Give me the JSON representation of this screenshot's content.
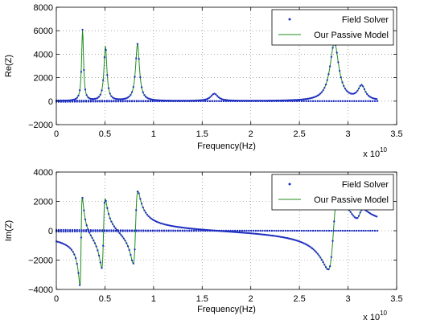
{
  "chart_data": [
    {
      "type": "line",
      "ylabel": "Re(Z)",
      "xlabel": "Frequency(Hz)",
      "xlim": [
        0,
        3.5
      ],
      "ylim": [
        -2000,
        8000
      ],
      "x_scale_label": "x 10",
      "x_scale_exponent": "10",
      "xticks": [
        0,
        0.5,
        1,
        1.5,
        2,
        2.5,
        3,
        3.5
      ],
      "xtick_labels": [
        "0",
        "0.5",
        "1",
        "1.5",
        "2",
        "2.5",
        "3",
        "3.5"
      ],
      "yticks": [
        -2000,
        0,
        2000,
        4000,
        6000,
        8000
      ],
      "ytick_labels": [
        "−2000",
        "0",
        "2000",
        "4000",
        "6000",
        "8000"
      ],
      "grid": "dotted",
      "legend_position": "top-right",
      "series": [
        {
          "name": "Field Solver",
          "style": "dots",
          "color": "#1f2fbf"
        },
        {
          "name": "Our Passive Model",
          "style": "line",
          "color": "#1e8c1e"
        }
      ],
      "resonances": [
        {
          "f": 0.27,
          "peak": 6050,
          "width": 0.012
        },
        {
          "f": 0.505,
          "peak": 4650,
          "width": 0.018
        },
        {
          "f": 0.835,
          "peak": 4850,
          "width": 0.024
        },
        {
          "f": 1.625,
          "peak": 620,
          "width": 0.045
        },
        {
          "f": 2.86,
          "peak": 4950,
          "width": 0.055
        },
        {
          "f": 3.14,
          "peak": 1200,
          "width": 0.045
        }
      ]
    },
    {
      "type": "line",
      "ylabel": "Im(Z)",
      "xlabel": "Frequency(Hz)",
      "xlim": [
        0,
        3.5
      ],
      "ylim": [
        -4000,
        4000
      ],
      "x_scale_label": "x 10",
      "x_scale_exponent": "10",
      "xticks": [
        0,
        0.5,
        1,
        1.5,
        2,
        2.5,
        3,
        3.5
      ],
      "xtick_labels": [
        "0",
        "0.5",
        "1",
        "1.5",
        "2",
        "2.5",
        "3",
        "3.5"
      ],
      "yticks": [
        -4000,
        -2000,
        0,
        2000,
        4000
      ],
      "ytick_labels": [
        "−4000",
        "−2000",
        "0",
        "2000",
        "4000"
      ],
      "grid": "dotted",
      "legend_position": "top-right",
      "series": [
        {
          "name": "Field Solver",
          "style": "dots",
          "color": "#1f2fbf"
        },
        {
          "name": "Our Passive Model",
          "style": "line",
          "color": "#1e8c1e"
        }
      ],
      "resonances": [
        {
          "f": 0.255,
          "peak": 3050,
          "width": 0.012
        },
        {
          "f": 0.485,
          "peak": 2400,
          "width": 0.018
        },
        {
          "f": 0.815,
          "peak": 2500,
          "width": 0.024
        },
        {
          "f": 2.85,
          "peak": 2650,
          "width": 0.055
        },
        {
          "f": 3.12,
          "peak": 450,
          "width": 0.045
        }
      ]
    }
  ]
}
